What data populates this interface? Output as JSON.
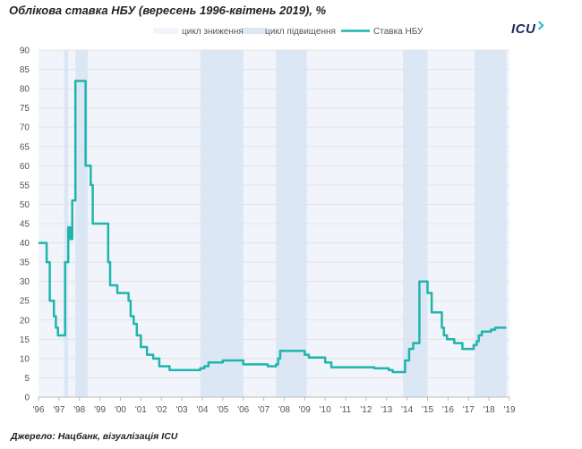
{
  "title": "Облікова ставка НБУ (вересень 1996-квітень 2019), %",
  "source": "Джерело: Нацбанк, візуалізація ICU",
  "logo": {
    "text": "ICU"
  },
  "legend": {
    "easing": "цикл зниження",
    "tightening": "цикл підвищення",
    "rate": "Ставка НБУ"
  },
  "colors": {
    "line": "#1fb5ad",
    "easing_band": "#f1f4fa",
    "tightening_band": "#dbe7f4",
    "grid": "#e3e3e3",
    "logo": "#1a2b5a"
  },
  "chart_data": {
    "type": "line",
    "title": "Облікова ставка НБУ (вересень 1996-квітень 2019), %",
    "xlabel": "",
    "ylabel": "",
    "xlim": [
      1996,
      2019
    ],
    "ylim": [
      0,
      90
    ],
    "x_ticks": [
      "'96",
      "'97",
      "'98",
      "'99",
      "'00",
      "'01",
      "'02",
      "'03",
      "'04",
      "'05",
      "'06",
      "'07",
      "'08",
      "'09",
      "'10",
      "'11",
      "'12",
      "'13",
      "'14",
      "'15",
      "'16",
      "'17",
      "'18",
      "'19"
    ],
    "y_ticks": [
      0,
      5,
      10,
      15,
      20,
      25,
      30,
      35,
      40,
      45,
      50,
      55,
      60,
      65,
      70,
      75,
      80,
      85,
      90
    ],
    "grid": "horizontal",
    "legend_position": "top",
    "tightening_periods": [
      [
        1997.25,
        1997.45
      ],
      [
        1997.8,
        1998.4
      ],
      [
        2003.9,
        2006.0
      ],
      [
        2007.6,
        2009.1
      ],
      [
        2013.8,
        2015.0
      ],
      [
        2017.3,
        2018.85
      ]
    ],
    "series": [
      {
        "name": "Ставка НБУ",
        "step": true,
        "points": [
          [
            1996.0,
            40
          ],
          [
            1996.4,
            35
          ],
          [
            1996.55,
            25
          ],
          [
            1996.75,
            21
          ],
          [
            1996.85,
            18
          ],
          [
            1996.95,
            16
          ],
          [
            1997.3,
            35
          ],
          [
            1997.45,
            44
          ],
          [
            1997.55,
            41
          ],
          [
            1997.65,
            51
          ],
          [
            1997.8,
            82
          ],
          [
            1998.3,
            60
          ],
          [
            1998.55,
            55
          ],
          [
            1998.65,
            45
          ],
          [
            1999.4,
            35
          ],
          [
            1999.5,
            29
          ],
          [
            1999.85,
            27
          ],
          [
            2000.4,
            25
          ],
          [
            2000.5,
            21
          ],
          [
            2000.65,
            19
          ],
          [
            2000.8,
            16
          ],
          [
            2001.0,
            13
          ],
          [
            2001.3,
            11
          ],
          [
            2001.6,
            10
          ],
          [
            2001.9,
            8
          ],
          [
            2002.4,
            7
          ],
          [
            2003.9,
            7.5
          ],
          [
            2004.1,
            8
          ],
          [
            2004.3,
            9
          ],
          [
            2005.0,
            9.5
          ],
          [
            2005.8,
            9.5
          ],
          [
            2006.0,
            8.5
          ],
          [
            2007.2,
            8
          ],
          [
            2007.6,
            8.5
          ],
          [
            2007.7,
            10
          ],
          [
            2007.8,
            12
          ],
          [
            2009.0,
            11
          ],
          [
            2009.2,
            10.25
          ],
          [
            2010.0,
            9
          ],
          [
            2010.3,
            7.75
          ],
          [
            2012.4,
            7.5
          ],
          [
            2013.1,
            7
          ],
          [
            2013.3,
            6.5
          ],
          [
            2013.9,
            9.5
          ],
          [
            2014.1,
            12.5
          ],
          [
            2014.3,
            14
          ],
          [
            2014.6,
            30
          ],
          [
            2015.0,
            27
          ],
          [
            2015.2,
            22
          ],
          [
            2015.7,
            18
          ],
          [
            2015.8,
            16
          ],
          [
            2015.95,
            15
          ],
          [
            2016.3,
            14
          ],
          [
            2016.7,
            12.5
          ],
          [
            2017.25,
            13.5
          ],
          [
            2017.4,
            14.5
          ],
          [
            2017.5,
            16
          ],
          [
            2017.65,
            17
          ],
          [
            2018.1,
            17.5
          ],
          [
            2018.3,
            18
          ],
          [
            2018.85,
            18
          ]
        ]
      }
    ]
  }
}
